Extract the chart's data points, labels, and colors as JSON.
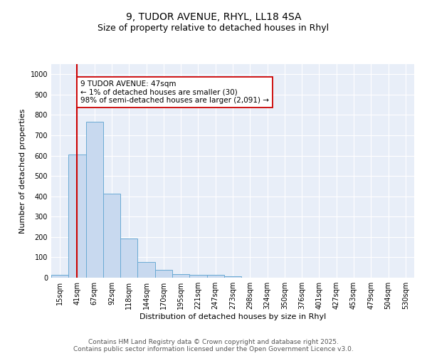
{
  "title_line1": "9, TUDOR AVENUE, RHYL, LL18 4SA",
  "title_line2": "Size of property relative to detached houses in Rhyl",
  "xlabel": "Distribution of detached houses by size in Rhyl",
  "ylabel": "Number of detached properties",
  "categories": [
    "15sqm",
    "41sqm",
    "67sqm",
    "92sqm",
    "118sqm",
    "144sqm",
    "170sqm",
    "195sqm",
    "221sqm",
    "247sqm",
    "273sqm",
    "298sqm",
    "324sqm",
    "350sqm",
    "376sqm",
    "401sqm",
    "427sqm",
    "453sqm",
    "479sqm",
    "504sqm",
    "530sqm"
  ],
  "values": [
    13,
    607,
    768,
    412,
    193,
    76,
    37,
    18,
    13,
    13,
    7,
    0,
    0,
    0,
    0,
    0,
    0,
    0,
    0,
    0,
    0
  ],
  "bar_color": "#c8d9ef",
  "bar_edge_color": "#6aaad4",
  "vline_x_index": 1,
  "vline_color": "#cc0000",
  "annotation_text": "9 TUDOR AVENUE: 47sqm\n← 1% of detached houses are smaller (30)\n98% of semi-detached houses are larger (2,091) →",
  "annotation_box_color": "#ffffff",
  "annotation_box_edge_color": "#cc0000",
  "ylim": [
    0,
    1050
  ],
  "yticks": [
    0,
    100,
    200,
    300,
    400,
    500,
    600,
    700,
    800,
    900,
    1000
  ],
  "plot_bg_color": "#e8eef8",
  "fig_bg_color": "#ffffff",
  "grid_color": "#ffffff",
  "footer_line1": "Contains HM Land Registry data © Crown copyright and database right 2025.",
  "footer_line2": "Contains public sector information licensed under the Open Government Licence v3.0.",
  "title_fontsize": 10,
  "subtitle_fontsize": 9,
  "axis_label_fontsize": 8,
  "tick_fontsize": 7,
  "annotation_fontsize": 7.5,
  "footer_fontsize": 6.5
}
